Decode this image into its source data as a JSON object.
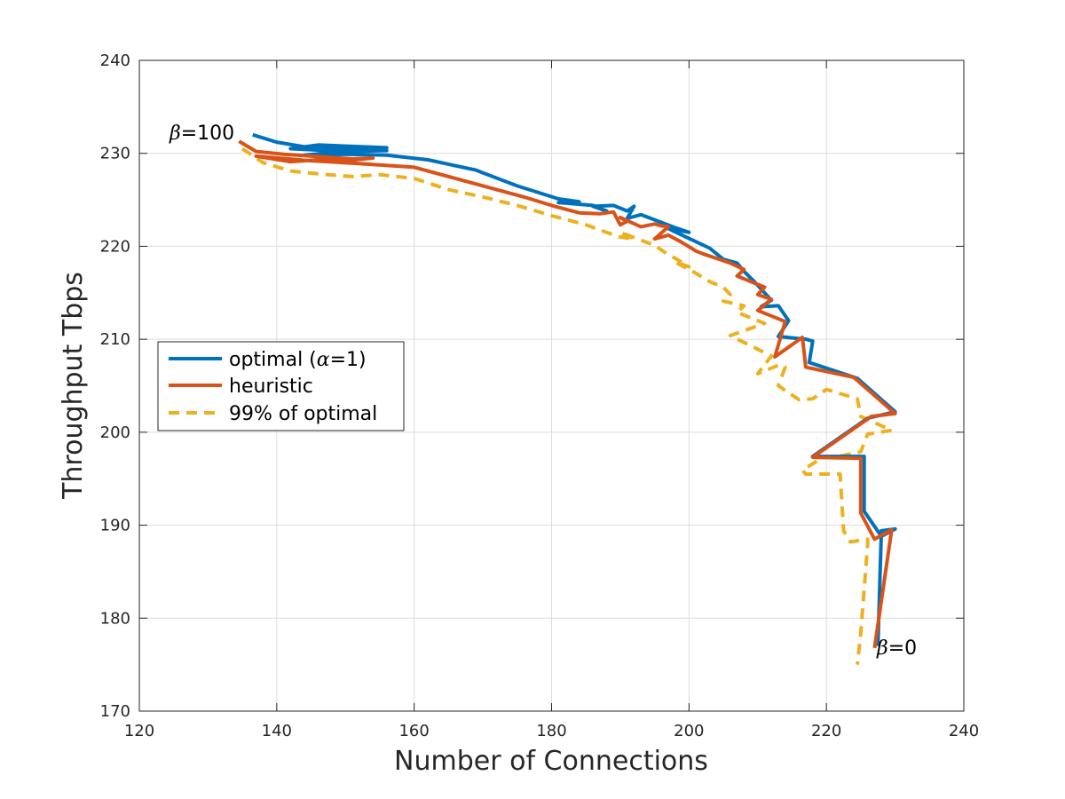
{
  "chart_data": {
    "type": "line",
    "title": "",
    "xlabel": "Number of Connections",
    "ylabel": "Throughput Tbps",
    "xlim": [
      120,
      240
    ],
    "ylim": [
      170,
      240
    ],
    "xticks": [
      "120",
      "140",
      "160",
      "180",
      "200",
      "220",
      "240"
    ],
    "yticks": [
      "170",
      "180",
      "190",
      "200",
      "210",
      "220",
      "230",
      "240"
    ],
    "grid": true,
    "legend_position": "middle-left",
    "annotations": [
      {
        "symbol": "β",
        "text": "=100",
        "x": 125,
        "y": 231.5
      },
      {
        "symbol": "β",
        "text": "=0",
        "x": 227,
        "y": 176.5
      }
    ],
    "series": [
      {
        "name": "optimal (α=1)",
        "legend_prefix": "optimal (",
        "legend_symbol": "α",
        "legend_suffix": "=1)",
        "color": "#0072BD",
        "style": "solid",
        "x": [
          136.5,
          140,
          144,
          150,
          156,
          146,
          142,
          150,
          156,
          150,
          144,
          150,
          156,
          162,
          169,
          170,
          175,
          181,
          184,
          181,
          186,
          188,
          186,
          189,
          191,
          192,
          191,
          193,
          198,
          200,
          197,
          199,
          203,
          205,
          207,
          208,
          209.5,
          212,
          210.5,
          213,
          214.5,
          213,
          217,
          218,
          217.5,
          224.5,
          230,
          226,
          218,
          225.5,
          225.5,
          225.5,
          228,
          230,
          228,
          227.5
        ],
        "y": [
          232,
          231.2,
          230.7,
          230.5,
          230.6,
          230.9,
          230.5,
          230.2,
          230.3,
          230.2,
          229.8,
          229.9,
          229.8,
          229.3,
          228.2,
          227.9,
          226.5,
          225.1,
          224.8,
          224.7,
          224.4,
          223.8,
          224.3,
          224.4,
          223.8,
          224.3,
          223,
          223.4,
          222,
          221.5,
          221.9,
          221.2,
          219.8,
          218.6,
          218.2,
          217.3,
          216.2,
          214.2,
          213.5,
          213.6,
          212,
          210.3,
          210,
          209.8,
          207.5,
          205.8,
          202.2,
          201.5,
          197.4,
          197.4,
          191.5,
          191.5,
          188.8,
          189.6,
          189.4,
          177
        ]
      },
      {
        "name": "heuristic",
        "color": "#D95319",
        "style": "solid",
        "x": [
          134.5,
          137,
          141,
          147,
          151,
          154,
          150,
          146,
          142,
          137,
          145,
          152,
          160,
          168,
          176,
          180,
          184,
          187,
          189,
          190,
          191,
          190,
          193,
          195,
          196,
          197,
          195,
          197,
          199,
          201,
          202,
          204,
          206,
          208,
          207,
          211,
          210,
          212,
          210,
          214,
          212.5,
          216.5,
          217,
          224,
          230,
          226.5,
          225,
          218,
          225,
          225,
          227,
          229.5,
          227
        ],
        "y": [
          231.3,
          230.2,
          229.9,
          229.6,
          229.4,
          229.5,
          229.2,
          229.3,
          229.1,
          229.7,
          229.2,
          228.9,
          228.5,
          226.9,
          225.3,
          224.4,
          223.6,
          223.5,
          223.7,
          222.3,
          222.7,
          223.1,
          222.1,
          222.4,
          222.2,
          222.1,
          220.8,
          221.2,
          220.4,
          219.5,
          219.2,
          218.7,
          218.2,
          217.5,
          216.8,
          215.6,
          214.8,
          214.3,
          213.1,
          211.9,
          208.1,
          210.2,
          207,
          205.9,
          202,
          201.7,
          200.9,
          197.3,
          197.2,
          191.3,
          188.5,
          189.5,
          176.8
        ]
      },
      {
        "name": "99% of optimal",
        "color": "#EDB120",
        "style": "dashed",
        "x": [
          135,
          138,
          142,
          146,
          151,
          155,
          160,
          165,
          170,
          175,
          180,
          185,
          188,
          190,
          192,
          190,
          195,
          197,
          198,
          200,
          198,
          201,
          203,
          205,
          206,
          205,
          208,
          207,
          211,
          206,
          209,
          212,
          210,
          213,
          214,
          213,
          216,
          218,
          220,
          224.5,
          225,
          229.5,
          226,
          225,
          222.5,
          219.5,
          216.5,
          217,
          222,
          222.5,
          223.5,
          226,
          226,
          225,
          224.5
        ],
        "y": [
          230.5,
          229,
          228.1,
          227.8,
          227.5,
          227.7,
          227.3,
          226.1,
          225.3,
          224.4,
          223.3,
          222.3,
          221.5,
          221,
          220.8,
          221.5,
          220.1,
          219.1,
          218.7,
          217.8,
          218.3,
          217.1,
          216.2,
          215.6,
          214.8,
          214.1,
          213.6,
          212.9,
          211.7,
          210.4,
          209.3,
          208.2,
          206.3,
          207.2,
          207,
          205,
          203.5,
          203.6,
          204.6,
          203.6,
          201.7,
          200.2,
          199.8,
          197.9,
          197.5,
          197.3,
          195.9,
          195.5,
          195.5,
          189.4,
          188.2,
          188.5,
          187.9,
          178.4,
          175
        ]
      }
    ]
  }
}
